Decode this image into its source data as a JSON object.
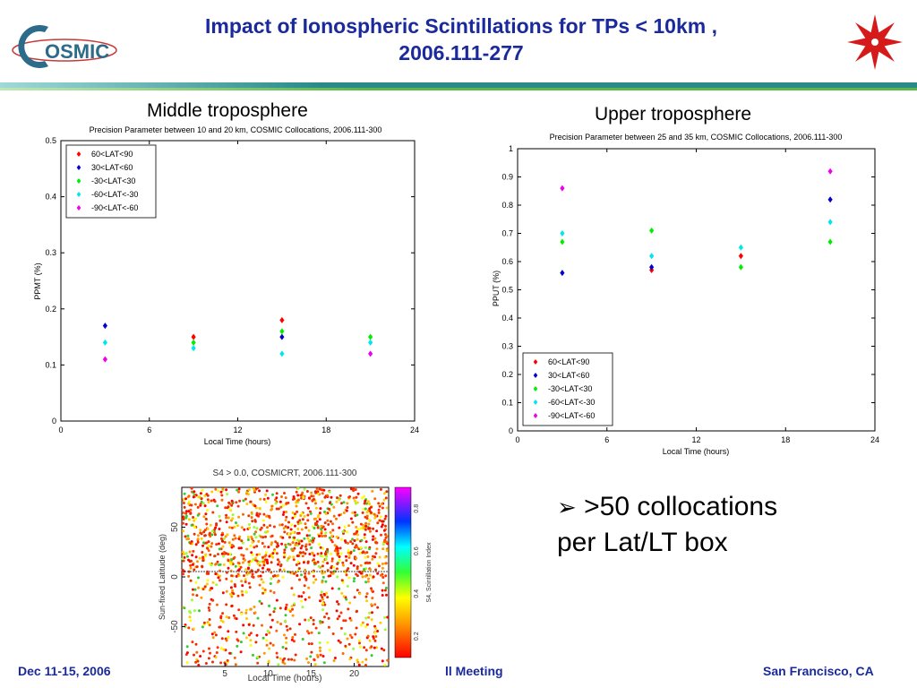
{
  "header": {
    "title_line1": "Impact of Ionospheric Scintillations for TPs < 10km ,",
    "title_line2": "2006.111-277",
    "logo_text": "OSMIC",
    "logo_icon": "cosmic-logo",
    "emblem_icon": "red-star-emblem"
  },
  "left_panel": {
    "label": "Middle troposphere",
    "chart_data": {
      "type": "scatter",
      "title": "Precision Parameter between 10 and 20 km, COSMIC Collocations, 2006.111-300",
      "xlabel": "Local Time (hours)",
      "ylabel": "PPMT (%)",
      "xlim": [
        0,
        24
      ],
      "ylim": [
        0,
        0.5
      ],
      "xticks": [
        "0",
        "6",
        "12",
        "18",
        "24"
      ],
      "yticks": [
        "0",
        "0.1",
        "0.2",
        "0.3",
        "0.4",
        "0.5"
      ],
      "legend_position": "top-left",
      "series": [
        {
          "name": "60<LAT<90",
          "color": "#ff0000",
          "x": [
            9,
            15
          ],
          "y": [
            0.15,
            0.18
          ]
        },
        {
          "name": "30<LAT<60",
          "color": "#0000cc",
          "x": [
            3,
            15
          ],
          "y": [
            0.17,
            0.15
          ]
        },
        {
          "name": "-30<LAT<30",
          "color": "#00ee00",
          "x": [
            9,
            15,
            21
          ],
          "y": [
            0.14,
            0.16,
            0.15
          ]
        },
        {
          "name": "-60<LAT<-30",
          "color": "#00e5ee",
          "x": [
            3,
            9,
            15,
            21
          ],
          "y": [
            0.14,
            0.13,
            0.12,
            0.14
          ]
        },
        {
          "name": "-90<LAT<-60",
          "color": "#ee00ee",
          "x": [
            3,
            21
          ],
          "y": [
            0.11,
            0.12
          ]
        }
      ]
    }
  },
  "right_panel": {
    "label": "Upper troposphere",
    "chart_data": {
      "type": "scatter",
      "title": "Precision Parameter between 25 and 35 km, COSMIC Collocations, 2006.111-300",
      "xlabel": "Local Time (hours)",
      "ylabel": "PPUT (%)",
      "xlim": [
        0,
        24
      ],
      "ylim": [
        0,
        1
      ],
      "xticks": [
        "0",
        "6",
        "12",
        "18",
        "24"
      ],
      "yticks": [
        "0",
        "0.1",
        "0.2",
        "0.3",
        "0.4",
        "0.5",
        "0.6",
        "0.7",
        "0.8",
        "0.9",
        "1"
      ],
      "legend_position": "bottom-left",
      "series": [
        {
          "name": "60<LAT<90",
          "color": "#ff0000",
          "x": [
            9,
            15
          ],
          "y": [
            0.57,
            0.62
          ]
        },
        {
          "name": "30<LAT<60",
          "color": "#0000cc",
          "x": [
            3,
            9,
            21
          ],
          "y": [
            0.56,
            0.58,
            0.82
          ]
        },
        {
          "name": "-30<LAT<30",
          "color": "#00ee00",
          "x": [
            3,
            9,
            15,
            21
          ],
          "y": [
            0.67,
            0.71,
            0.58,
            0.67
          ]
        },
        {
          "name": "-60<LAT<-30",
          "color": "#00e5ee",
          "x": [
            3,
            9,
            15,
            21
          ],
          "y": [
            0.7,
            0.62,
            0.65,
            0.74
          ]
        },
        {
          "name": "-90<LAT<-60",
          "color": "#ee00ee",
          "x": [
            3,
            21
          ],
          "y": [
            0.86,
            0.92
          ]
        }
      ]
    }
  },
  "map_panel": {
    "chart_data": {
      "type": "scatter",
      "title": "S4 > 0.0, COSMICRT, 2006.111-300",
      "xlabel": "Local Time (hours)",
      "ylabel": "Sun-fixed Latitude (deg)",
      "colorbar_label": "S4, Scintillation Index",
      "xlim": [
        0,
        24
      ],
      "ylim": [
        -90,
        90
      ],
      "xticks": [
        "5",
        "10",
        "15",
        "20"
      ],
      "yticks": [
        "-50",
        "0",
        "50"
      ],
      "colorbar_ticks": [
        "0.2",
        "0.4",
        "0.6",
        "0.8"
      ]
    }
  },
  "bullet": {
    "line1": ">50 collocations",
    "line2": "per Lat/LT box"
  },
  "footer": {
    "left": "Dec 11-15, 2006",
    "center": "ll Meeting",
    "right": "San Francisco, CA"
  },
  "colors": {
    "title": "#1a2a9c",
    "bar_teal": "#2a8a8a",
    "bar_green": "#5ab84a",
    "footer": "#1a2a9c"
  }
}
